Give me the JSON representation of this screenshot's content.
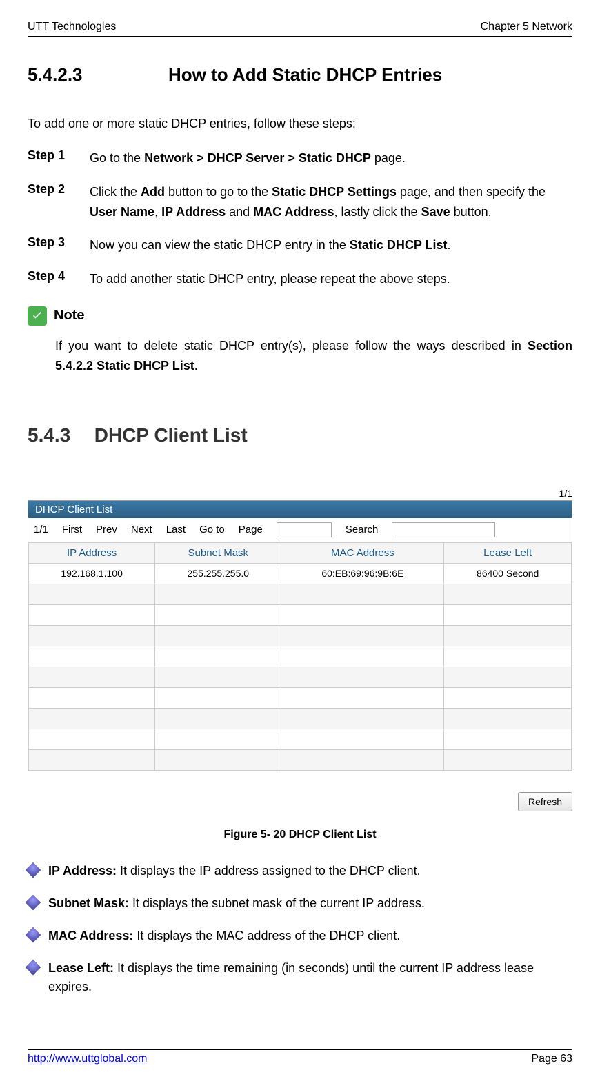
{
  "header": {
    "left": "UTT Technologies",
    "right": "Chapter 5 Network"
  },
  "section5423": {
    "num": "5.4.2.3",
    "title": "How to Add Static DHCP Entries"
  },
  "intro": "To add one or more static DHCP entries, follow these steps:",
  "steps": {
    "s1": {
      "label": "Step 1",
      "pre": "Go to the ",
      "bold": "Network > DHCP Server > Static DHCP",
      "post": " page."
    },
    "s2": {
      "label": "Step 2",
      "t1": "Click the ",
      "b1": "Add",
      "t2": " button to go to the ",
      "b2": "Static DHCP Settings",
      "t3": " page, and then specify the ",
      "b3": "User Name",
      "t4": ", ",
      "b4": "IP Address",
      "t5": " and ",
      "b5": "MAC Address",
      "t6": ", lastly click the ",
      "b6": "Save",
      "t7": " button."
    },
    "s3": {
      "label": "Step 3",
      "t1": "Now you can view the static DHCP entry in the ",
      "b1": "Static DHCP List",
      "t2": "."
    },
    "s4": {
      "label": "Step 4",
      "t1": "To add another static DHCP entry, please repeat the above steps."
    }
  },
  "note": {
    "label": "Note",
    "t1": "If you want to delete static DHCP entry(s), please follow the ways described in ",
    "b1": "Section 5.4.2.2 Static DHCP List",
    "t2": "."
  },
  "section543": {
    "num": "5.4.3",
    "title": "DHCP Client List"
  },
  "panel": {
    "header": "DHCP Client List",
    "page_indicator": "1/1",
    "pagination": {
      "range": "1/1",
      "first": "First",
      "prev": "Prev",
      "next": "Next",
      "last": "Last",
      "goto": "Go to",
      "page": "Page",
      "search": "Search"
    },
    "columns": [
      "IP Address",
      "Subnet Mask",
      "MAC Address",
      "Lease Left"
    ],
    "rows": [
      [
        "192.168.1.100",
        "255.255.255.0",
        "60:EB:69:96:9B:6E",
        "86400 Second"
      ],
      [
        "",
        "",
        "",
        ""
      ],
      [
        "",
        "",
        "",
        ""
      ],
      [
        "",
        "",
        "",
        ""
      ],
      [
        "",
        "",
        "",
        ""
      ],
      [
        "",
        "",
        "",
        ""
      ],
      [
        "",
        "",
        "",
        ""
      ],
      [
        "",
        "",
        "",
        ""
      ],
      [
        "",
        "",
        "",
        ""
      ],
      [
        "",
        "",
        "",
        ""
      ]
    ],
    "refresh": "Refresh"
  },
  "figure_caption": "Figure 5- 20 DHCP Client List",
  "bullets": {
    "b1": {
      "label": "IP Address:",
      "text": " It displays the IP address assigned to the DHCP client."
    },
    "b2": {
      "label": "Subnet Mask:",
      "text": " It displays the subnet mask of the current IP address."
    },
    "b3": {
      "label": "MAC Address:",
      "text": " It displays the MAC address of the DHCP client."
    },
    "b4": {
      "label": "Lease Left:",
      "text": " It displays the time remaining (in seconds) until the current IP address lease expires."
    }
  },
  "footer": {
    "link": "http://www.uttglobal.com",
    "page": "Page 63"
  }
}
